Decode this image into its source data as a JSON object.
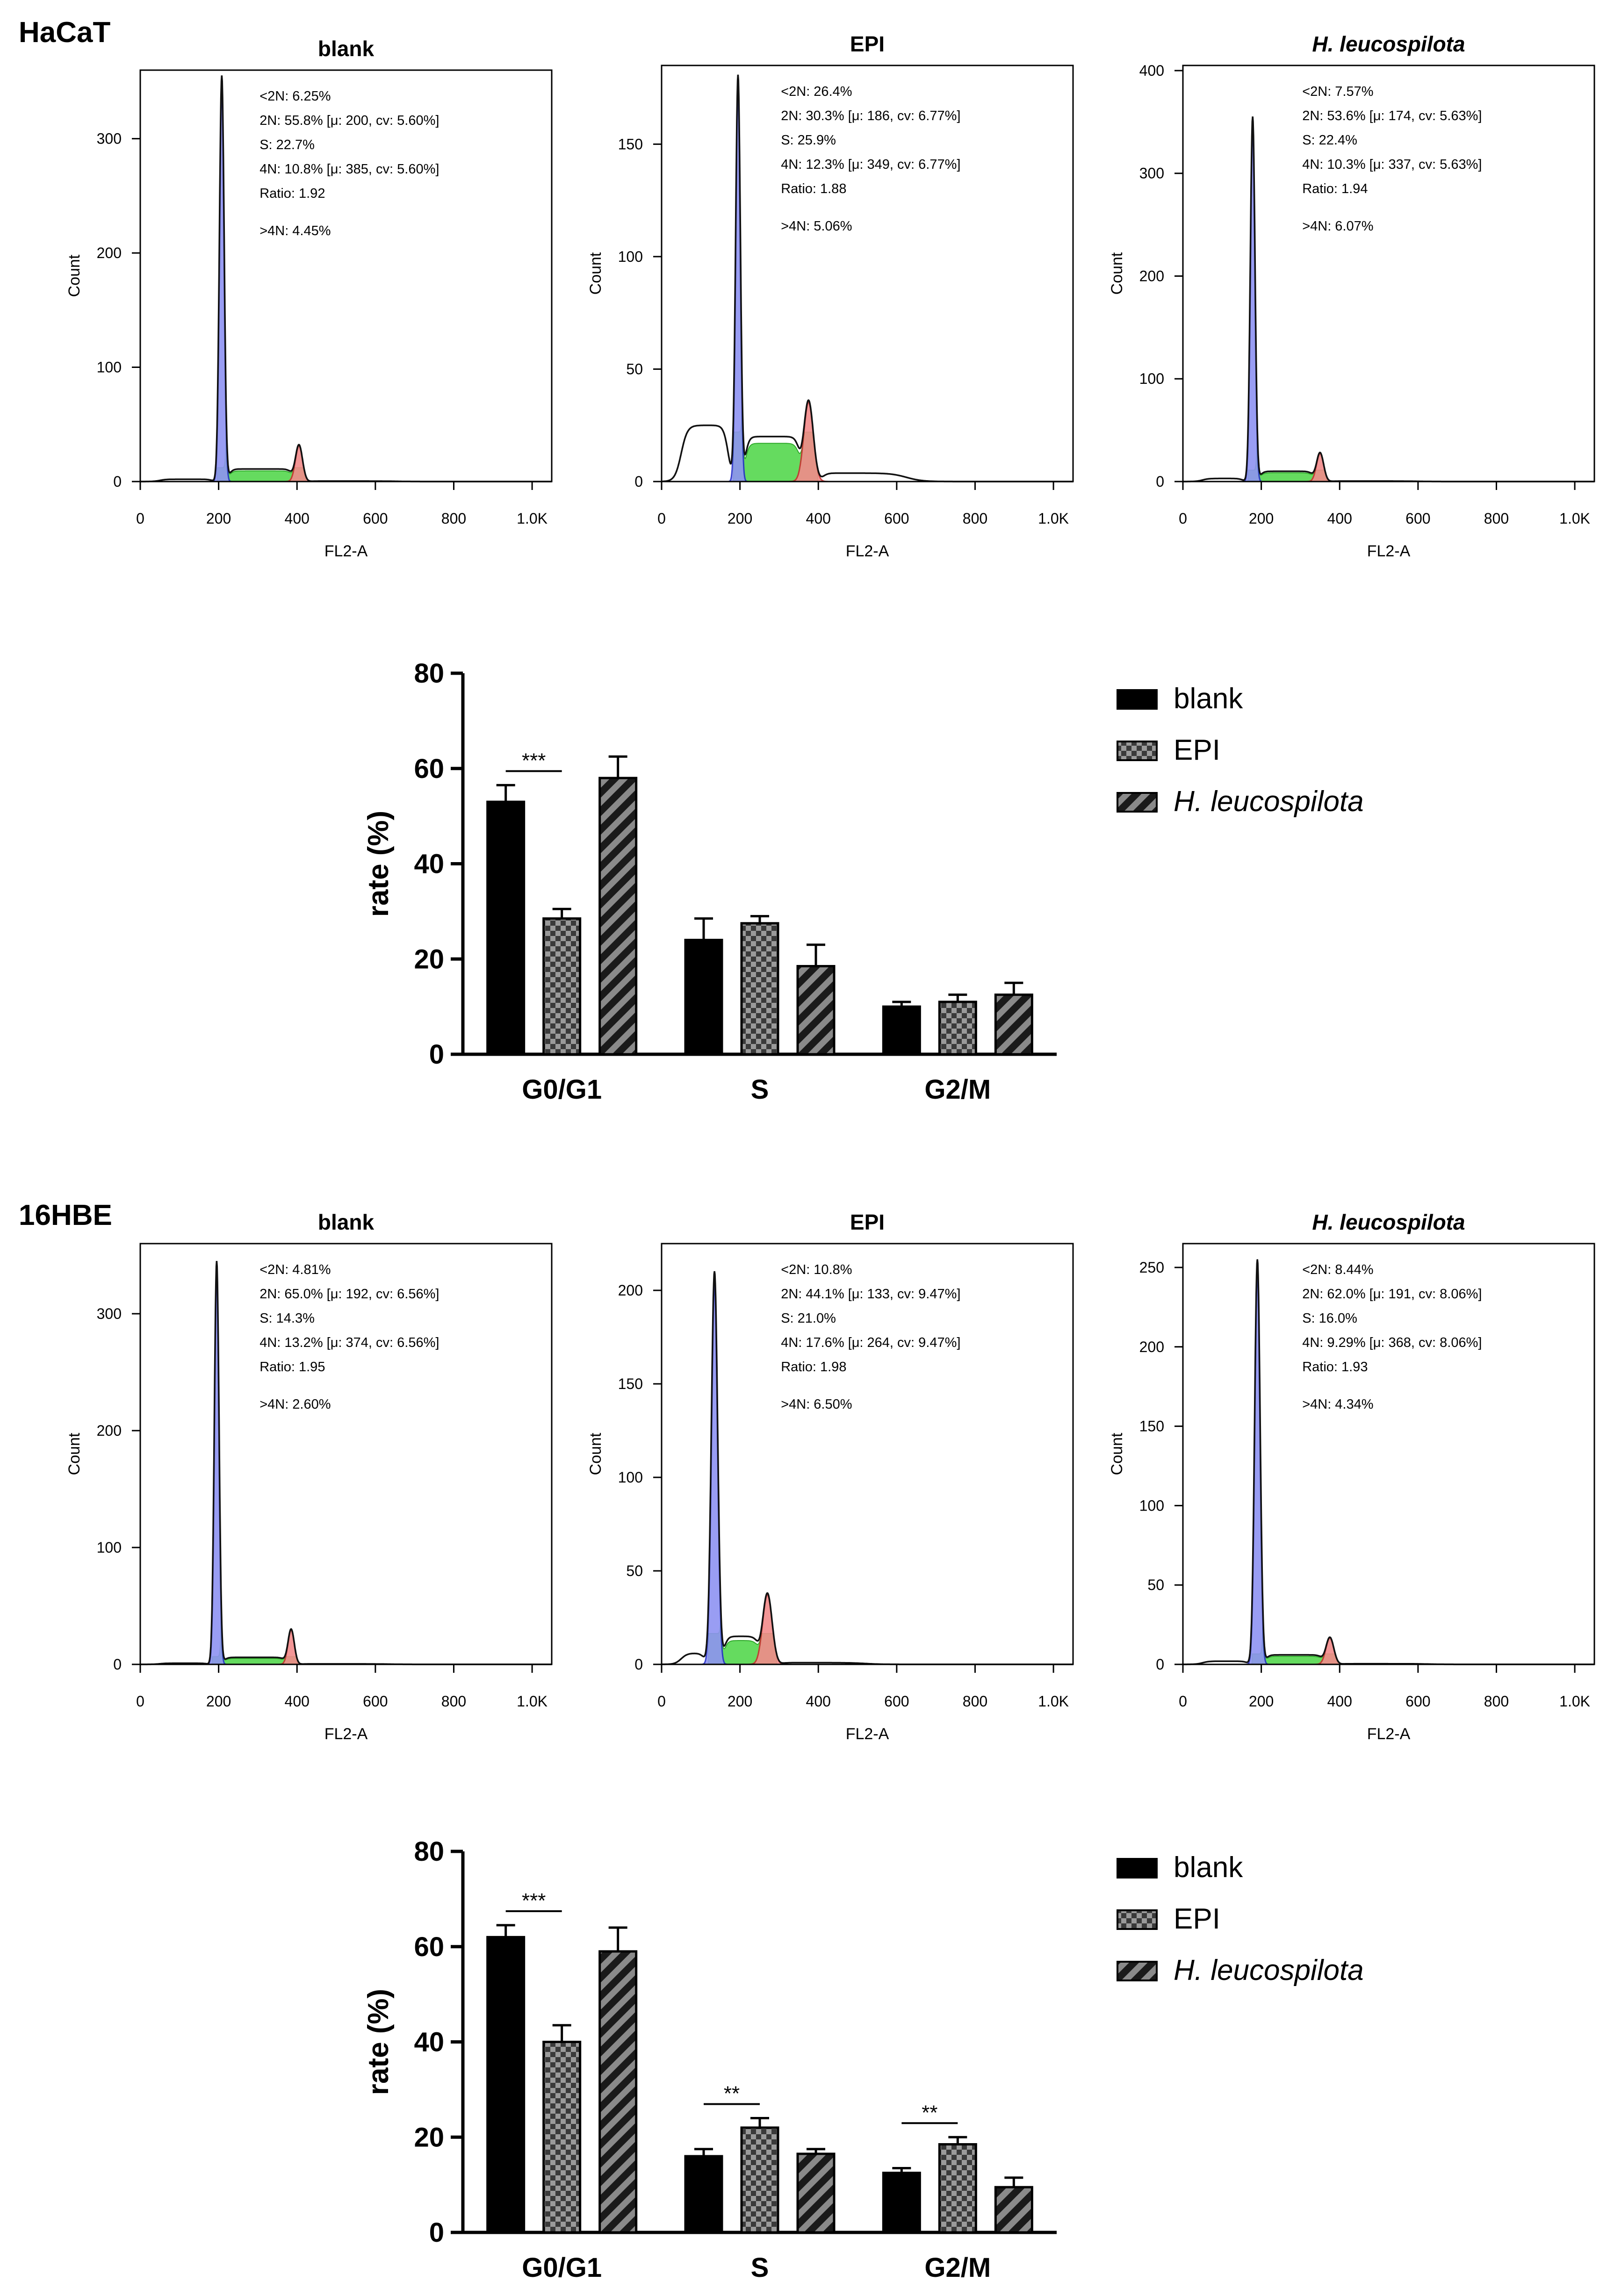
{
  "figure": {
    "sections": [
      {
        "label": "HaCaT"
      },
      {
        "label": "16HBE"
      }
    ],
    "colors": {
      "axis": "#000000",
      "curve": "#111111",
      "g1_fill": "#8f93f2",
      "g1_line": "#2630c8",
      "s_fill": "#55d84e",
      "s_line": "#18a012",
      "g2_fill": "#f28b8b",
      "g2_line": "#c83030",
      "bar_blank": "#000000",
      "bar_epi_dark": "#3a3a3a",
      "bar_epi_light": "#9a9a9a",
      "bar_hl_dark": "#1a1a1a",
      "bar_hl_light": "#8a8a8a"
    }
  },
  "chart_data": [
    {
      "type": "histogram",
      "section": "HaCaT",
      "title": "blank",
      "title_italic": false,
      "xlabel": "FL2-A",
      "ylabel": "Count",
      "xlim": [
        0,
        1050
      ],
      "ylim": [
        0,
        360
      ],
      "xticks": [
        "0",
        "200",
        "400",
        "600",
        "800",
        "1.0K"
      ],
      "yticks": [
        0,
        100,
        200,
        300
      ],
      "stats": [
        "<2N: 6.25%",
        "2N: 55.8%   [μ: 200, cv: 5.60%]",
        "S: 22.7%",
        "4N: 10.8%   [μ: 385, cv: 5.60%]",
        "Ratio: 1.92",
        ">4N: 4.45%"
      ],
      "peaks": {
        "g1_mu": 208,
        "g1_height": 355,
        "g1_sd": 6,
        "g2_mu": 405,
        "g2_height": 32,
        "g2_sd": 9,
        "s_level": 11,
        "sub_level": 2
      }
    },
    {
      "type": "histogram",
      "section": "HaCaT",
      "title": "EPI",
      "title_italic": false,
      "xlabel": "FL2-A",
      "ylabel": "Count",
      "xlim": [
        0,
        1050
      ],
      "ylim": [
        0,
        185
      ],
      "xticks": [
        "0",
        "200",
        "400",
        "600",
        "800",
        "1.0K"
      ],
      "yticks": [
        0,
        50,
        100,
        150
      ],
      "stats": [
        "<2N: 26.4%",
        "2N: 30.3%   [μ: 186, cv: 6.77%]",
        "S: 25.9%",
        "4N: 12.3%   [μ: 349, cv: 6.77%]",
        "Ratio: 1.88",
        ">4N: 5.06%"
      ],
      "peaks": {
        "g1_mu": 195,
        "g1_height": 180,
        "g1_sd": 6,
        "g2_mu": 375,
        "g2_height": 36,
        "g2_sd": 12,
        "s_level": 20,
        "sub_level": 25
      }
    },
    {
      "type": "histogram",
      "section": "HaCaT",
      "title": "H. leucospilota",
      "title_italic": true,
      "xlabel": "FL2-A",
      "ylabel": "Count",
      "xlim": [
        0,
        1050
      ],
      "ylim": [
        0,
        405
      ],
      "xticks": [
        "0",
        "200",
        "400",
        "600",
        "800",
        "1.0K"
      ],
      "yticks": [
        0,
        100,
        200,
        300,
        400
      ],
      "stats": [
        "<2N: 7.57%",
        "2N: 53.6%   [μ: 174, cv: 5.63%]",
        "S: 22.4%",
        "4N: 10.3%   [μ: 337, cv: 5.63%]",
        "Ratio: 1.94",
        ">4N: 6.07%"
      ],
      "peaks": {
        "g1_mu": 178,
        "g1_height": 355,
        "g1_sd": 6,
        "g2_mu": 350,
        "g2_height": 28,
        "g2_sd": 9,
        "s_level": 10,
        "sub_level": 3
      }
    },
    {
      "type": "bar",
      "section": "HaCaT",
      "categories": [
        "G0/G1",
        "S",
        "G2/M"
      ],
      "ylabel": "rate (%)",
      "ylim": [
        0,
        80
      ],
      "yticks": [
        0,
        20,
        40,
        60,
        80
      ],
      "series": [
        {
          "name": "blank",
          "italic": false,
          "values": [
            53,
            24,
            10
          ],
          "errors": [
            3.5,
            4.5,
            1
          ]
        },
        {
          "name": "EPI",
          "italic": false,
          "values": [
            28.5,
            27.5,
            11
          ],
          "errors": [
            2,
            1.5,
            1.5
          ]
        },
        {
          "name": "H. leucospilota",
          "italic": true,
          "values": [
            58,
            18.5,
            12.5
          ],
          "errors": [
            4.5,
            4.5,
            2.5
          ]
        }
      ],
      "significance": [
        {
          "category": 0,
          "from": 0,
          "to": 1,
          "label": "***"
        }
      ]
    },
    {
      "type": "histogram",
      "section": "16HBE",
      "title": "blank",
      "title_italic": false,
      "xlabel": "FL2-A",
      "ylabel": "Count",
      "xlim": [
        0,
        1050
      ],
      "ylim": [
        0,
        360
      ],
      "xticks": [
        "0",
        "200",
        "400",
        "600",
        "800",
        "1.0K"
      ],
      "yticks": [
        0,
        100,
        200,
        300
      ],
      "stats": [
        "<2N: 4.81%",
        "2N: 65.0%   [μ: 192, cv: 6.56%]",
        "S: 14.3%",
        "4N: 13.2%   [μ: 374, cv: 6.56%]",
        "Ratio: 1.95",
        ">4N: 2.60%"
      ],
      "peaks": {
        "g1_mu": 195,
        "g1_height": 345,
        "g1_sd": 6,
        "g2_mu": 385,
        "g2_height": 30,
        "g2_sd": 8,
        "s_level": 6,
        "sub_level": 1
      }
    },
    {
      "type": "histogram",
      "section": "16HBE",
      "title": "EPI",
      "title_italic": false,
      "xlabel": "FL2-A",
      "ylabel": "Count",
      "xlim": [
        0,
        1050
      ],
      "ylim": [
        0,
        225
      ],
      "xticks": [
        "0",
        "200",
        "400",
        "600",
        "800",
        "1.0K"
      ],
      "yticks": [
        0,
        50,
        100,
        150,
        200
      ],
      "stats": [
        "<2N: 10.8%",
        "2N: 44.1%   [μ: 133, cv: 9.47%]",
        "S: 21.0%",
        "4N: 17.6%   [μ: 264, cv: 9.47%]",
        "Ratio: 1.98",
        ">4N: 6.50%"
      ],
      "peaks": {
        "g1_mu": 135,
        "g1_height": 210,
        "g1_sd": 8,
        "g2_mu": 270,
        "g2_height": 38,
        "g2_sd": 12,
        "s_level": 15,
        "sub_level": 6
      }
    },
    {
      "type": "histogram",
      "section": "16HBE",
      "title": "H. leucospilota",
      "title_italic": true,
      "xlabel": "FL2-A",
      "ylabel": "Count",
      "xlim": [
        0,
        1050
      ],
      "ylim": [
        0,
        265
      ],
      "xticks": [
        "0",
        "200",
        "400",
        "600",
        "800",
        "1.0K"
      ],
      "yticks": [
        0,
        50,
        100,
        150,
        200,
        250
      ],
      "stats": [
        "<2N: 8.44%",
        "2N: 62.0%   [μ: 191, cv: 8.06%]",
        "S: 16.0%",
        "4N: 9.29%   [μ: 368, cv: 8.06%]",
        "Ratio: 1.93",
        ">4N: 4.34%"
      ],
      "peaks": {
        "g1_mu": 190,
        "g1_height": 255,
        "g1_sd": 7,
        "g2_mu": 375,
        "g2_height": 17,
        "g2_sd": 10,
        "s_level": 6,
        "sub_level": 2
      }
    },
    {
      "type": "bar",
      "section": "16HBE",
      "categories": [
        "G0/G1",
        "S",
        "G2/M"
      ],
      "ylabel": "rate (%)",
      "ylim": [
        0,
        80
      ],
      "yticks": [
        0,
        20,
        40,
        60,
        80
      ],
      "series": [
        {
          "name": "blank",
          "italic": false,
          "values": [
            62,
            16,
            12.5
          ],
          "errors": [
            2.5,
            1.5,
            1
          ]
        },
        {
          "name": "EPI",
          "italic": false,
          "values": [
            40,
            22,
            18.5
          ],
          "errors": [
            3.5,
            2,
            1.5
          ]
        },
        {
          "name": "H. leucospilota",
          "italic": true,
          "values": [
            59,
            16.5,
            9.5
          ],
          "errors": [
            5,
            1,
            2
          ]
        }
      ],
      "significance": [
        {
          "category": 0,
          "from": 0,
          "to": 1,
          "label": "***"
        },
        {
          "category": 1,
          "from": 0,
          "to": 1,
          "label": "**"
        },
        {
          "category": 2,
          "from": 0,
          "to": 1,
          "label": "**"
        }
      ]
    }
  ]
}
